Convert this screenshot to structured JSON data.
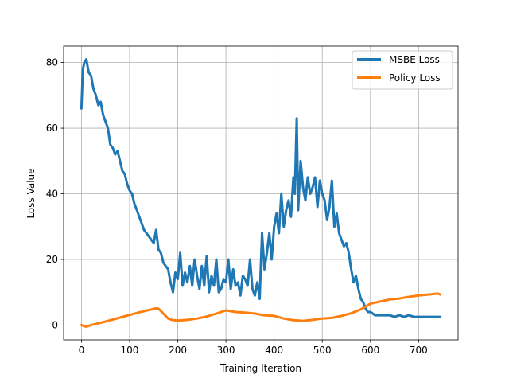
{
  "chart_data": {
    "type": "line",
    "title": "",
    "xlabel": "Training Iteration",
    "ylabel": "Loss Value",
    "xlim": [
      -37,
      782
    ],
    "ylim": [
      -4.5,
      85
    ],
    "xticks": [
      0,
      100,
      200,
      300,
      400,
      500,
      600,
      700
    ],
    "yticks": [
      0,
      20,
      40,
      60,
      80
    ],
    "grid": true,
    "legend_position": "top-right",
    "series": [
      {
        "name": "MSBE Loss",
        "color": "#1f77b4",
        "x": [
          0,
          3,
          6,
          10,
          15,
          20,
          25,
          30,
          35,
          40,
          45,
          50,
          55,
          60,
          65,
          70,
          75,
          80,
          85,
          90,
          95,
          100,
          105,
          110,
          115,
          120,
          125,
          130,
          135,
          140,
          145,
          150,
          155,
          160,
          165,
          170,
          175,
          180,
          185,
          190,
          195,
          200,
          205,
          210,
          215,
          220,
          225,
          230,
          235,
          240,
          245,
          250,
          255,
          260,
          265,
          270,
          275,
          280,
          285,
          290,
          295,
          300,
          305,
          310,
          315,
          320,
          325,
          330,
          335,
          340,
          345,
          350,
          355,
          360,
          365,
          370,
          375,
          380,
          385,
          390,
          395,
          400,
          405,
          410,
          415,
          420,
          425,
          430,
          435,
          440,
          443,
          447,
          450,
          455,
          460,
          465,
          470,
          475,
          480,
          485,
          490,
          495,
          500,
          505,
          510,
          515,
          520,
          525,
          530,
          535,
          540,
          545,
          550,
          555,
          560,
          565,
          570,
          575,
          580,
          585,
          590,
          595,
          600,
          610,
          620,
          630,
          640,
          650,
          660,
          670,
          680,
          690,
          700,
          710,
          720,
          730,
          740,
          745
        ],
        "values": [
          66,
          78,
          80,
          81,
          77,
          76,
          72,
          70,
          67,
          68,
          64,
          62,
          60,
          55,
          54,
          52,
          53,
          50,
          47,
          46,
          43,
          41,
          40,
          37,
          35,
          33,
          31,
          29,
          28,
          27,
          26,
          25,
          29,
          23,
          22,
          19,
          18,
          17,
          13,
          10,
          16,
          14,
          22,
          12,
          16,
          13,
          18,
          12,
          20,
          15,
          11,
          18,
          12,
          21,
          10,
          15,
          12,
          20,
          10,
          11,
          14,
          13,
          20,
          11,
          17,
          12,
          13,
          9,
          15,
          14,
          12,
          20,
          11,
          9,
          13,
          8,
          28,
          17,
          22,
          28,
          20,
          30,
          34,
          28,
          40,
          30,
          35,
          38,
          33,
          45,
          40,
          63,
          35,
          50,
          42,
          38,
          45,
          40,
          42,
          45,
          36,
          44,
          40,
          38,
          32,
          36,
          44,
          30,
          34,
          28,
          26,
          24,
          25,
          22,
          17,
          13,
          15,
          11,
          8,
          7,
          5,
          4,
          4,
          3,
          3,
          3,
          3,
          2.5,
          3,
          2.5,
          3,
          2.5,
          2.5,
          2.5,
          2.5,
          2.5,
          2.5,
          2.5
        ]
      },
      {
        "name": "Policy Loss",
        "color": "#ff7f0e",
        "x": [
          0,
          5,
          10,
          20,
          40,
          60,
          80,
          100,
          120,
          140,
          155,
          160,
          165,
          170,
          180,
          190,
          200,
          220,
          240,
          260,
          280,
          300,
          320,
          340,
          360,
          380,
          400,
          420,
          440,
          460,
          480,
          500,
          520,
          540,
          560,
          580,
          600,
          620,
          640,
          660,
          680,
          700,
          720,
          740,
          745
        ],
        "values": [
          0,
          -0.3,
          -0.5,
          0,
          0.7,
          1.5,
          2.3,
          3.1,
          3.9,
          4.6,
          5.1,
          5.0,
          4.3,
          3.5,
          2.0,
          1.5,
          1.4,
          1.6,
          2.0,
          2.6,
          3.5,
          4.5,
          4.0,
          3.8,
          3.5,
          3.0,
          2.8,
          2.0,
          1.5,
          1.3,
          1.6,
          2.0,
          2.2,
          2.8,
          3.6,
          4.8,
          6.5,
          7.2,
          7.8,
          8.1,
          8.6,
          9.0,
          9.3,
          9.6,
          9.3
        ]
      }
    ]
  }
}
